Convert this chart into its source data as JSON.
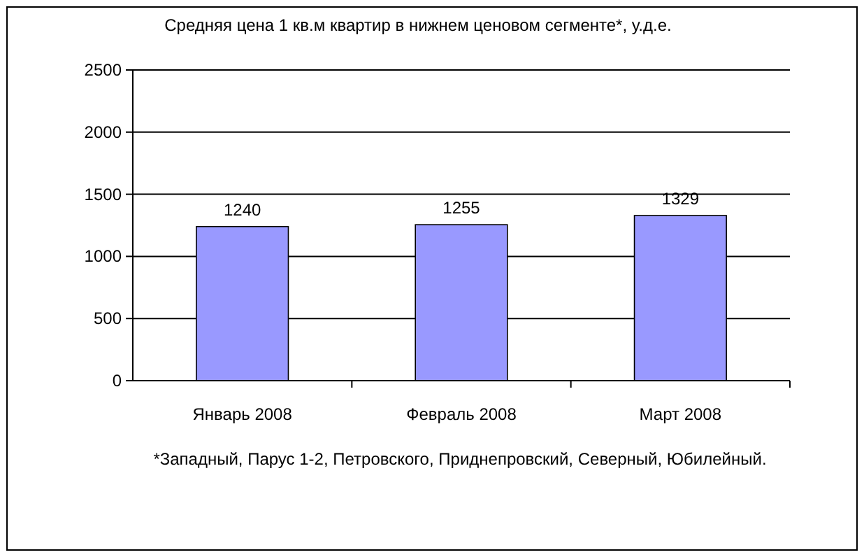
{
  "chart_data": {
    "type": "bar",
    "title": "Средняя цена 1 кв.м квартир в нижнем ценовом сегменте*, у.д.е.",
    "categories": [
      "Январь 2008",
      "Февраль 2008",
      "Март 2008"
    ],
    "values": [
      1240,
      1255,
      1329
    ],
    "color": "#9999ff",
    "ylim": [
      0,
      2500
    ],
    "yticks": [
      0,
      500,
      1000,
      1500,
      2000,
      2500
    ],
    "grid": "y",
    "data_labels": true,
    "annotations": [
      "*Западный, Парус 1-2, Петровского, Приднепровский, Северный, Юбилейный."
    ]
  }
}
